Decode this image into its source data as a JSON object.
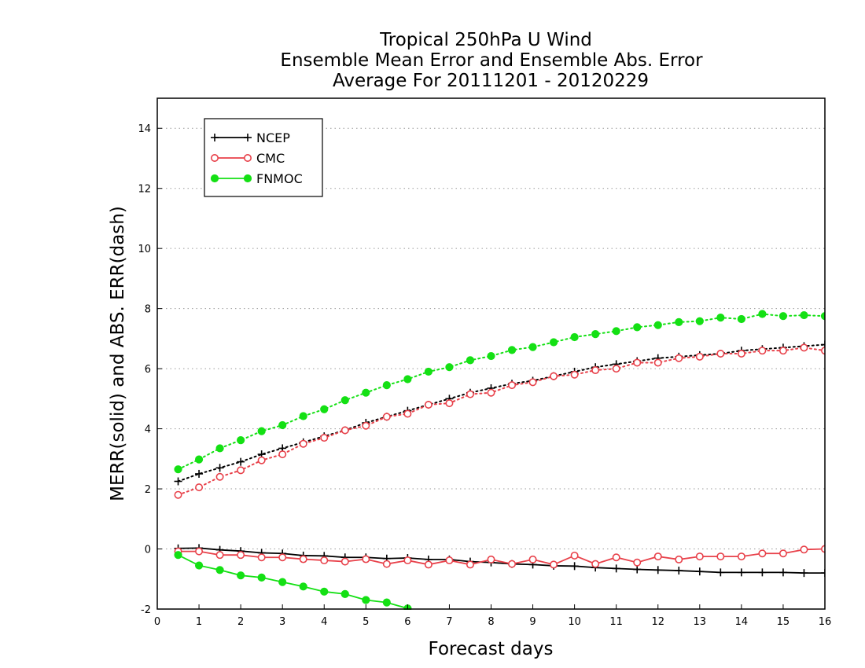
{
  "chart_data": {
    "type": "line",
    "title": [
      "Tropical 250hPa U Wind",
      "Ensemble Mean Error and Ensemble Abs. Error",
      "Average For 20111201 - 20120229"
    ],
    "xlabel": "Forecast days",
    "ylabel": "MERR(solid) and ABS. ERR(dash)",
    "xlim": [
      0,
      16
    ],
    "ylim": [
      -2,
      15
    ],
    "xticks": [
      "0",
      "1",
      "2",
      "3",
      "4",
      "5",
      "6",
      "7",
      "8",
      "9",
      "10",
      "11",
      "12",
      "13",
      "14",
      "15",
      "16"
    ],
    "yticks": [
      "-2",
      "0",
      "2",
      "4",
      "6",
      "8",
      "10",
      "12",
      "14"
    ],
    "grid": "horizontal dotted",
    "legend_position": "top-left",
    "x": [
      0.5,
      1,
      1.5,
      2,
      2.5,
      3,
      3.5,
      4,
      4.5,
      5,
      5.5,
      6,
      6.5,
      7,
      7.5,
      8,
      8.5,
      9,
      9.5,
      10,
      10.5,
      11,
      11.5,
      12,
      12.5,
      13,
      13.5,
      14,
      14.5,
      15,
      15.5,
      16
    ],
    "series": [
      {
        "name": "NCEP",
        "color": "#000000",
        "marker": "plus",
        "merr": [
          0.02,
          0.03,
          -0.03,
          -0.07,
          -0.13,
          -0.15,
          -0.22,
          -0.23,
          -0.28,
          -0.28,
          -0.32,
          -0.3,
          -0.35,
          -0.35,
          -0.42,
          -0.45,
          -0.5,
          -0.52,
          -0.56,
          -0.57,
          -0.62,
          -0.65,
          -0.68,
          -0.7,
          -0.72,
          -0.75,
          -0.78,
          -0.78,
          -0.78,
          -0.78,
          -0.8,
          -0.8
        ],
        "abs_err": [
          2.25,
          2.5,
          2.7,
          2.9,
          3.15,
          3.35,
          3.55,
          3.75,
          3.95,
          4.2,
          4.4,
          4.6,
          4.8,
          5.0,
          5.2,
          5.35,
          5.5,
          5.6,
          5.75,
          5.9,
          6.05,
          6.15,
          6.25,
          6.35,
          6.4,
          6.45,
          6.5,
          6.6,
          6.65,
          6.7,
          6.75,
          6.8
        ]
      },
      {
        "name": "CMC",
        "color": "#e8414a",
        "marker": "open-circle",
        "merr": [
          -0.08,
          -0.08,
          -0.2,
          -0.2,
          -0.28,
          -0.28,
          -0.34,
          -0.38,
          -0.42,
          -0.34,
          -0.5,
          -0.38,
          -0.52,
          -0.38,
          -0.52,
          -0.35,
          -0.5,
          -0.35,
          -0.52,
          -0.22,
          -0.5,
          -0.28,
          -0.45,
          -0.25,
          -0.35,
          -0.25,
          -0.25,
          -0.25,
          -0.15,
          -0.15,
          -0.02,
          0.0
        ],
        "abs_err": [
          1.8,
          2.05,
          2.4,
          2.62,
          2.95,
          3.15,
          3.5,
          3.7,
          3.95,
          4.1,
          4.4,
          4.5,
          4.8,
          4.85,
          5.15,
          5.2,
          5.45,
          5.55,
          5.75,
          5.8,
          5.95,
          6.0,
          6.2,
          6.2,
          6.35,
          6.4,
          6.5,
          6.5,
          6.6,
          6.6,
          6.7,
          6.6
        ]
      },
      {
        "name": "FNMOC",
        "color": "#14e014",
        "marker": "filled-circle",
        "merr": [
          -0.2,
          -0.55,
          -0.7,
          -0.88,
          -0.95,
          -1.1,
          -1.25,
          -1.42,
          -1.5,
          -1.7,
          -1.78,
          -1.98
        ],
        "abs_err": [
          2.65,
          2.98,
          3.35,
          3.62,
          3.92,
          4.12,
          4.42,
          4.65,
          4.95,
          5.2,
          5.45,
          5.65,
          5.9,
          6.05,
          6.28,
          6.42,
          6.62,
          6.72,
          6.88,
          7.05,
          7.15,
          7.25,
          7.38,
          7.45,
          7.55,
          7.58,
          7.7,
          7.65,
          7.82,
          7.75,
          7.78,
          7.75
        ]
      }
    ]
  }
}
